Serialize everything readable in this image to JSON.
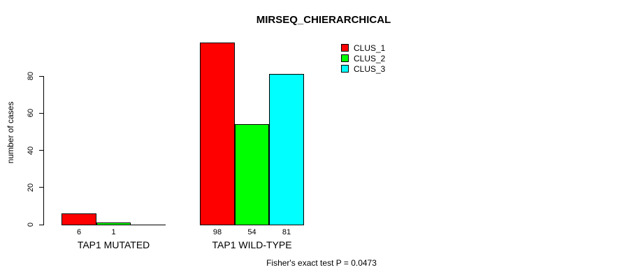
{
  "chart_data": {
    "type": "bar",
    "title": "MIRSEQ_CHIERARCHICAL",
    "ylabel": "number of cases",
    "xlabel": "",
    "ylim": [
      0,
      80
    ],
    "yticks": [
      0,
      20,
      40,
      60,
      80
    ],
    "grid": false,
    "legend_position": "top-right",
    "categories": [
      "TAP1 MUTATED",
      "TAP1 WILD-TYPE"
    ],
    "series": [
      {
        "name": "CLUS_1",
        "color": "#ff0000",
        "values": [
          6,
          98
        ]
      },
      {
        "name": "CLUS_2",
        "color": "#00ff00",
        "values": [
          1,
          54
        ]
      },
      {
        "name": "CLUS_3",
        "color": "#00ffff",
        "values": [
          0,
          81
        ]
      }
    ],
    "bar_value_labels": [
      [
        "6",
        "1",
        ""
      ],
      [
        "98",
        "54",
        "81"
      ]
    ],
    "footnote": "Fisher's exact test P = 0.0473"
  }
}
